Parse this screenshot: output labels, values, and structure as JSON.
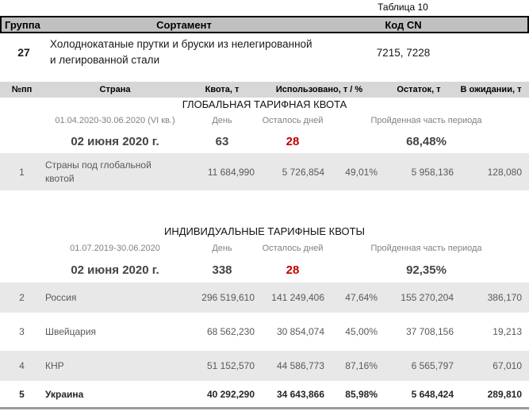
{
  "colors": {
    "accent_red": "#c00000",
    "product_header_bg": "#c0c0c0",
    "quota_header_bg": "#d7d7d7",
    "row_shade_bg": "#e8e8e8",
    "muted_text": "#808080",
    "data_text": "#595959"
  },
  "caption": "Таблица 10",
  "product_table": {
    "headers": {
      "group": "Группа",
      "sortament": "Сортамент",
      "code_cn": "Код CN"
    },
    "row": {
      "group": "27",
      "sortament_lines": [
        "Холоднокатаные прутки и бруски из нелегированной",
        "и легированной стали"
      ],
      "code_cn": "7215, 7228"
    }
  },
  "quota_table": {
    "headers": {
      "num": "№пп",
      "country": "Страна",
      "quota": "Квота, т",
      "used": "Использовано, т / %",
      "remaining": "Остаток, т",
      "pending": "В ожидании, т"
    },
    "sections": [
      {
        "title": "ГЛОБАЛЬНАЯ ТАРИФНАЯ КВОТА",
        "period": "01.04.2020-30.06.2020 (VI кв.)",
        "labels": {
          "day": "День",
          "days_left": "Осталось дней",
          "elapsed": "Пройденная часть периода"
        },
        "current_date": "02 июня 2020 г.",
        "day": "63",
        "days_left": "28",
        "elapsed": "68,48%",
        "rows": [
          {
            "num": "1",
            "country_lines": [
              "Страны под глобальной",
              "квотой"
            ],
            "quota": "11 684,990",
            "used_t": "5 726,854",
            "used_pct": "49,01%",
            "remaining": "5 958,136",
            "pending": "128,080"
          }
        ]
      },
      {
        "title": "ИНДИВИДУАЛЬНЫЕ ТАРИФНЫЕ КВОТЫ",
        "period": "01.07.2019-30.06.2020",
        "labels": {
          "day": "День",
          "days_left": "Осталось дней",
          "elapsed": "Пройденная часть периода"
        },
        "current_date": "02 июня 2020 г.",
        "day": "338",
        "days_left": "28",
        "elapsed": "92,35%",
        "rows": [
          {
            "num": "2",
            "country_lines": [
              "Россия"
            ],
            "quota": "296 519,610",
            "used_t": "141 249,406",
            "used_pct": "47,64%",
            "remaining": "155 270,204",
            "pending": "386,170"
          },
          {
            "num": "3",
            "country_lines": [
              "Швейцария"
            ],
            "quota": "68 562,230",
            "used_t": "30 854,074",
            "used_pct": "45,00%",
            "remaining": "37 708,156",
            "pending": "19,213"
          },
          {
            "num": "4",
            "country_lines": [
              "КНР"
            ],
            "quota": "51 152,570",
            "used_t": "44 586,773",
            "used_pct": "87,16%",
            "remaining": "6 565,797",
            "pending": "67,010"
          },
          {
            "num": "5",
            "country_lines": [
              "Украина"
            ],
            "quota": "40 292,290",
            "used_t": "34 643,866",
            "used_pct": "85,98%",
            "remaining": "5 648,424",
            "pending": "289,810"
          }
        ]
      }
    ]
  }
}
